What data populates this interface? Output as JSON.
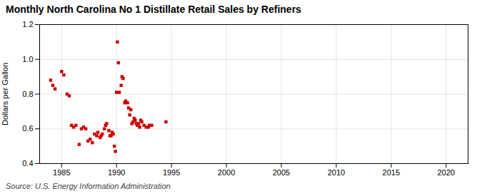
{
  "chart_data": {
    "type": "scatter",
    "title": "Monthly North Carolina No 1 Distillate Retail Sales by Refiners",
    "ylabel": "Dollars per Gallon",
    "source": "Source: U.S. Energy Information Administration",
    "color": "#cc0000",
    "marker": "square",
    "grid": true,
    "xlim": [
      1983,
      2022
    ],
    "ylim": [
      0.4,
      1.2
    ],
    "xticks": [
      1985,
      1990,
      1995,
      2000,
      2005,
      2010,
      2015,
      2020
    ],
    "yticks": [
      0.4,
      0.6,
      0.8,
      {
        "value": 1.0,
        "label": "1.0"
      },
      1.2
    ],
    "x": [
      1984.0,
      1984.2,
      1984.4,
      1985.0,
      1985.2,
      1985.5,
      1985.7,
      1985.9,
      1986.1,
      1986.3,
      1986.6,
      1986.8,
      1987.0,
      1987.2,
      1987.4,
      1987.6,
      1987.8,
      1988.0,
      1988.2,
      1988.3,
      1988.5,
      1988.6,
      1988.7,
      1988.9,
      1989.0,
      1989.1,
      1989.3,
      1989.4,
      1989.5,
      1989.6,
      1989.7,
      1989.8,
      1989.9,
      1990.0,
      1990.08,
      1990.17,
      1990.25,
      1990.42,
      1990.5,
      1990.6,
      1990.75,
      1990.83,
      1991.0,
      1991.1,
      1991.2,
      1991.3,
      1991.4,
      1991.5,
      1991.6,
      1991.7,
      1991.8,
      1991.9,
      1992.0,
      1992.1,
      1992.2,
      1992.3,
      1992.5,
      1992.7,
      1992.9,
      1993.0,
      1993.2,
      1994.5
    ],
    "values": [
      0.88,
      0.85,
      0.83,
      0.93,
      0.91,
      0.8,
      0.79,
      0.62,
      0.61,
      0.62,
      0.51,
      0.6,
      0.61,
      0.6,
      0.53,
      0.54,
      0.52,
      0.57,
      0.56,
      0.58,
      0.55,
      0.56,
      0.57,
      0.6,
      0.62,
      0.63,
      0.59,
      0.56,
      0.56,
      0.58,
      0.57,
      0.5,
      0.47,
      0.81,
      1.1,
      0.98,
      0.81,
      0.85,
      0.9,
      0.89,
      0.75,
      0.76,
      0.75,
      0.72,
      0.68,
      0.71,
      0.63,
      0.64,
      0.66,
      0.65,
      0.63,
      0.62,
      0.63,
      0.61,
      0.65,
      0.64,
      0.62,
      0.61,
      0.61,
      0.62,
      0.62,
      0.64
    ]
  }
}
